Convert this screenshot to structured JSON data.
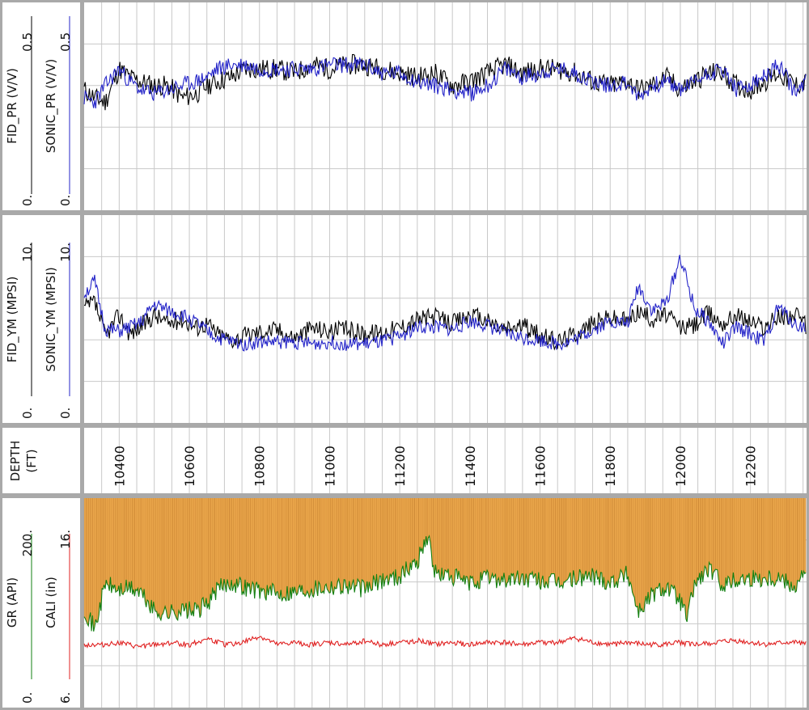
{
  "chart_data": [
    {
      "type": "line",
      "panel": "poisson-ratio",
      "xlim": [
        10300,
        12360
      ],
      "ylim": [
        0,
        0.5
      ],
      "left_label": "0.5",
      "right_label": "0.",
      "grid": true,
      "series": [
        {
          "name": "FID_PR (V/V)",
          "scale_min": "0.",
          "scale_max": "0.5",
          "color": "#000000",
          "x": [
            10300,
            10330,
            10360,
            10400,
            10430,
            10460,
            10500,
            10540,
            10580,
            10620,
            10650,
            10680,
            10720,
            10760,
            10800,
            10850,
            10900,
            10950,
            11000,
            11050,
            11100,
            11150,
            11200,
            11250,
            11300,
            11350,
            11400,
            11450,
            11500,
            11550,
            11600,
            11650,
            11700,
            11750,
            11800,
            11850,
            11880,
            11920,
            11960,
            12000,
            12040,
            12080,
            12120,
            12160,
            12200,
            12240,
            12280,
            12330,
            12360
          ],
          "y": [
            0.29,
            0.27,
            0.26,
            0.34,
            0.32,
            0.31,
            0.3,
            0.3,
            0.27,
            0.28,
            0.3,
            0.31,
            0.32,
            0.34,
            0.34,
            0.34,
            0.33,
            0.35,
            0.34,
            0.35,
            0.35,
            0.34,
            0.33,
            0.32,
            0.33,
            0.3,
            0.31,
            0.33,
            0.35,
            0.33,
            0.34,
            0.34,
            0.33,
            0.31,
            0.3,
            0.31,
            0.29,
            0.3,
            0.32,
            0.29,
            0.31,
            0.33,
            0.33,
            0.3,
            0.29,
            0.31,
            0.33,
            0.3,
            0.31
          ]
        },
        {
          "name": "SONIC_PR (V/V)",
          "scale_min": "0.",
          "scale_max": "0.5",
          "color": "#2424c8",
          "x": [
            10300,
            10330,
            10360,
            10400,
            10430,
            10460,
            10500,
            10540,
            10580,
            10620,
            10650,
            10680,
            10720,
            10760,
            10800,
            10850,
            10900,
            10950,
            11000,
            11050,
            11100,
            11150,
            11200,
            11250,
            11300,
            11350,
            11400,
            11450,
            11500,
            11550,
            11600,
            11650,
            11700,
            11750,
            11800,
            11850,
            11880,
            11920,
            11960,
            12000,
            12040,
            12080,
            12120,
            12160,
            12200,
            12240,
            12280,
            12330,
            12360
          ],
          "y": [
            0.27,
            0.26,
            0.3,
            0.34,
            0.31,
            0.29,
            0.28,
            0.29,
            0.3,
            0.31,
            0.32,
            0.34,
            0.35,
            0.35,
            0.34,
            0.34,
            0.34,
            0.34,
            0.35,
            0.35,
            0.35,
            0.33,
            0.33,
            0.31,
            0.3,
            0.29,
            0.28,
            0.3,
            0.34,
            0.32,
            0.33,
            0.34,
            0.33,
            0.31,
            0.3,
            0.31,
            0.27,
            0.3,
            0.31,
            0.29,
            0.31,
            0.33,
            0.34,
            0.29,
            0.3,
            0.32,
            0.35,
            0.28,
            0.31
          ]
        }
      ]
    },
    {
      "type": "line",
      "panel": "youngs-modulus",
      "xlim": [
        10300,
        12360
      ],
      "ylim": [
        0,
        10
      ],
      "grid": true,
      "series": [
        {
          "name": "FID_YM (MPSI)",
          "scale_min": "0.",
          "scale_max": "10.",
          "color": "#000000",
          "x": [
            10300,
            10330,
            10360,
            10400,
            10430,
            10460,
            10500,
            10540,
            10580,
            10620,
            10650,
            10680,
            10720,
            10760,
            10800,
            10850,
            10900,
            10950,
            11000,
            11050,
            11100,
            11150,
            11200,
            11250,
            11300,
            11350,
            11400,
            11450,
            11500,
            11550,
            11600,
            11650,
            11700,
            11750,
            11800,
            11850,
            11880,
            11920,
            11960,
            12000,
            12040,
            12080,
            12120,
            12160,
            12200,
            12240,
            12280,
            12330,
            12360
          ],
          "y": [
            5.5,
            5.8,
            4.2,
            5.2,
            4.3,
            4.6,
            5.2,
            4.8,
            5.0,
            4.6,
            4.8,
            4.3,
            4.0,
            4.2,
            4.4,
            4.5,
            4.1,
            4.6,
            4.4,
            4.5,
            4.3,
            4.4,
            4.6,
            5.0,
            5.1,
            4.8,
            5.2,
            4.9,
            4.5,
            4.7,
            4.2,
            3.9,
            4.3,
            4.8,
            5.1,
            4.9,
            5.4,
            5.0,
            5.2,
            4.6,
            4.7,
            5.3,
            4.8,
            5.2,
            4.9,
            4.6,
            5.1,
            5.2,
            4.6
          ]
        },
        {
          "name": "SONIC_YM (MPSI)",
          "scale_min": "0.",
          "scale_max": "10.",
          "color": "#2424c8",
          "x": [
            10300,
            10330,
            10360,
            10400,
            10430,
            10460,
            10500,
            10540,
            10580,
            10620,
            10650,
            10680,
            10720,
            10760,
            10800,
            10850,
            10900,
            10950,
            11000,
            11050,
            11100,
            11150,
            11200,
            11250,
            11300,
            11350,
            11400,
            11450,
            11500,
            11550,
            11600,
            11650,
            11700,
            11750,
            11800,
            11850,
            11880,
            11920,
            11960,
            12000,
            12040,
            12080,
            12120,
            12160,
            12200,
            12240,
            12280,
            12330,
            12360
          ],
          "y": [
            6.2,
            6.8,
            4.5,
            4.4,
            4.6,
            4.8,
            5.7,
            5.4,
            5.2,
            4.8,
            4.4,
            4.1,
            3.9,
            3.8,
            3.9,
            3.9,
            3.9,
            3.8,
            3.9,
            3.8,
            3.8,
            3.9,
            4.2,
            4.6,
            4.6,
            4.5,
            4.9,
            4.7,
            4.3,
            4.1,
            4.0,
            3.8,
            4.0,
            4.5,
            4.9,
            4.8,
            6.6,
            5.4,
            5.8,
            8.0,
            5.5,
            4.9,
            3.8,
            4.6,
            4.3,
            3.9,
            5.6,
            4.7,
            4.6
          ]
        }
      ]
    },
    {
      "type": "line",
      "panel": "gamma-ray-caliper",
      "xlim": [
        10300,
        12360
      ],
      "grid": true,
      "series": [
        {
          "name": "GR (API)",
          "scale_min": "0.",
          "scale_max": "200.",
          "color": "#128012",
          "x": [
            10300,
            10330,
            10360,
            10400,
            10430,
            10460,
            10500,
            10540,
            10580,
            10620,
            10650,
            10680,
            10720,
            10760,
            10800,
            10850,
            10900,
            10950,
            11000,
            11050,
            11100,
            11150,
            11200,
            11250,
            11280,
            11300,
            11350,
            11400,
            11450,
            11500,
            11550,
            11600,
            11650,
            11700,
            11750,
            11800,
            11850,
            11880,
            11920,
            11960,
            12000,
            12020,
            12040,
            12080,
            12120,
            12160,
            12200,
            12240,
            12280,
            12330,
            12360
          ],
          "y": [
            95,
            75,
            118,
            112,
            114,
            110,
            92,
            90,
            93,
            92,
            99,
            113,
            120,
            115,
            112,
            109,
            111,
            114,
            116,
            117,
            113,
            122,
            126,
            140,
            165,
            128,
            125,
            118,
            124,
            122,
            123,
            121,
            119,
            123,
            126,
            120,
            128,
            92,
            108,
            116,
            102,
            85,
            118,
            132,
            118,
            122,
            124,
            124,
            125,
            116,
            132
          ]
        },
        {
          "name": "CALI (in)",
          "scale_min": "6.",
          "scale_max": "16.",
          "color": "#e02020",
          "x": [
            10300,
            10350,
            10400,
            10450,
            10500,
            10550,
            10600,
            10650,
            10700,
            10750,
            10800,
            10850,
            10900,
            10950,
            11000,
            11050,
            11100,
            11150,
            11200,
            11250,
            11300,
            11350,
            11400,
            11450,
            11500,
            11550,
            11600,
            11650,
            11700,
            11750,
            11800,
            11850,
            11900,
            11950,
            12000,
            12050,
            12100,
            12150,
            12200,
            12250,
            12300,
            12360
          ],
          "y": [
            9.0,
            9.0,
            9.1,
            8.9,
            9.0,
            9.1,
            9.0,
            9.3,
            9.0,
            9.1,
            9.4,
            9.0,
            9.1,
            9.0,
            9.1,
            9.0,
            9.2,
            9.0,
            9.1,
            9.2,
            9.0,
            9.1,
            9.0,
            9.1,
            9.1,
            9.0,
            9.1,
            9.1,
            9.3,
            9.1,
            9.0,
            9.1,
            9.0,
            9.0,
            9.1,
            9.0,
            9.1,
            9.2,
            9.1,
            9.0,
            9.1,
            9.1
          ]
        }
      ]
    }
  ],
  "depth_track": {
    "label_line1": "DEPTH",
    "label_line2": "(FT)",
    "ticks": [
      "10400",
      "10600",
      "10800",
      "11000",
      "11200",
      "11400",
      "11600",
      "11800",
      "12000",
      "12200"
    ]
  },
  "colors": {
    "border": "#a9a9a9",
    "grid": "#c8c8c8",
    "gr_fill": "#e9a54a",
    "gr_fill_dark": "#b06a20"
  }
}
